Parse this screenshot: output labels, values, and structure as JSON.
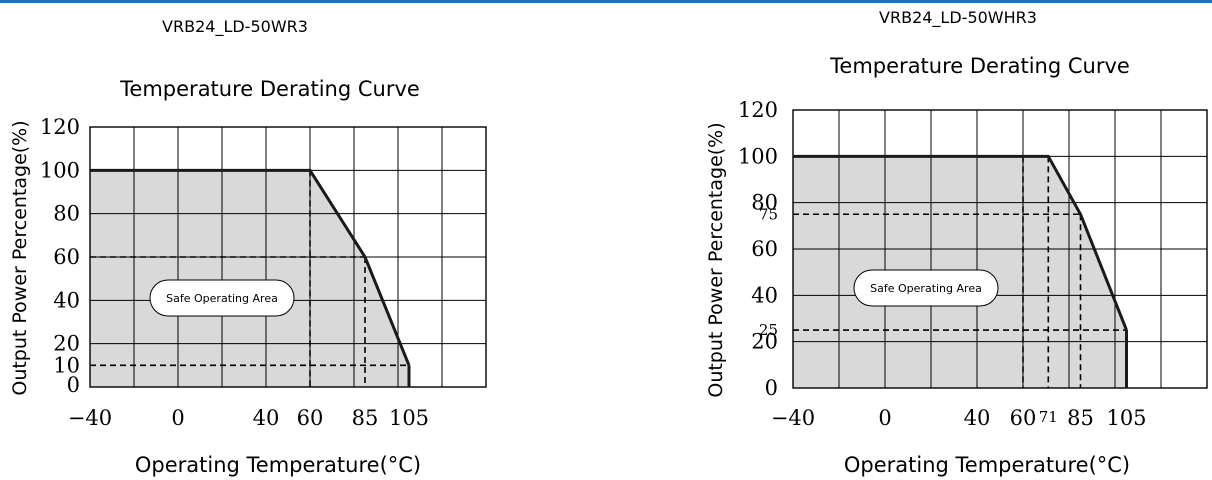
{
  "colors": {
    "top_line": "#1a74c4",
    "area_fill": "#d9d9d9",
    "curve": "#1a1a1a"
  },
  "chart_data": [
    {
      "type": "area",
      "model": "VRB24_LD-50WR3",
      "title": "Temperature Derating Curve",
      "xlabel": "Operating Temperature(°C)",
      "ylabel": "Output Power Percentage(%)",
      "x_ticks": [
        "−40",
        "0",
        "40",
        "60",
        "85",
        "105"
      ],
      "y_ticks": [
        "120",
        "100",
        "80",
        "60",
        "40",
        "20",
        "10",
        "0"
      ],
      "xlim": [
        -40,
        140
      ],
      "ylim": [
        0,
        120
      ],
      "grid": true,
      "series": [
        {
          "x": [
            -40,
            60,
            85,
            105
          ],
          "y": [
            100,
            100,
            60,
            10
          ]
        }
      ],
      "reference_lines": [
        {
          "x": 60,
          "y": 100
        },
        {
          "x": 85,
          "y": 60
        },
        {
          "x": 105,
          "y": 10
        }
      ],
      "annotation": "Safe Operating Area"
    },
    {
      "type": "area",
      "model": "VRB24_LD-50WHR3",
      "title": "Temperature Derating Curve",
      "xlabel": "Operating Temperature(°C)",
      "ylabel": "Output Power Percentage(%)",
      "x_ticks": [
        "−40",
        "0",
        "40",
        "60",
        "71",
        "85",
        "105"
      ],
      "y_ticks": [
        "120",
        "100",
        "80",
        "75",
        "60",
        "40",
        "25",
        "20",
        "0"
      ],
      "xlim": [
        -40,
        140
      ],
      "ylim": [
        0,
        120
      ],
      "grid": true,
      "series": [
        {
          "x": [
            -40,
            71,
            85,
            105
          ],
          "y": [
            100,
            100,
            75,
            25
          ]
        }
      ],
      "reference_lines": [
        {
          "x": 60,
          "y": 100
        },
        {
          "x": 71,
          "y": 100
        },
        {
          "x": 85,
          "y": 75
        },
        {
          "x": 105,
          "y": 25
        }
      ],
      "annotation": "Safe Operating Area"
    }
  ]
}
